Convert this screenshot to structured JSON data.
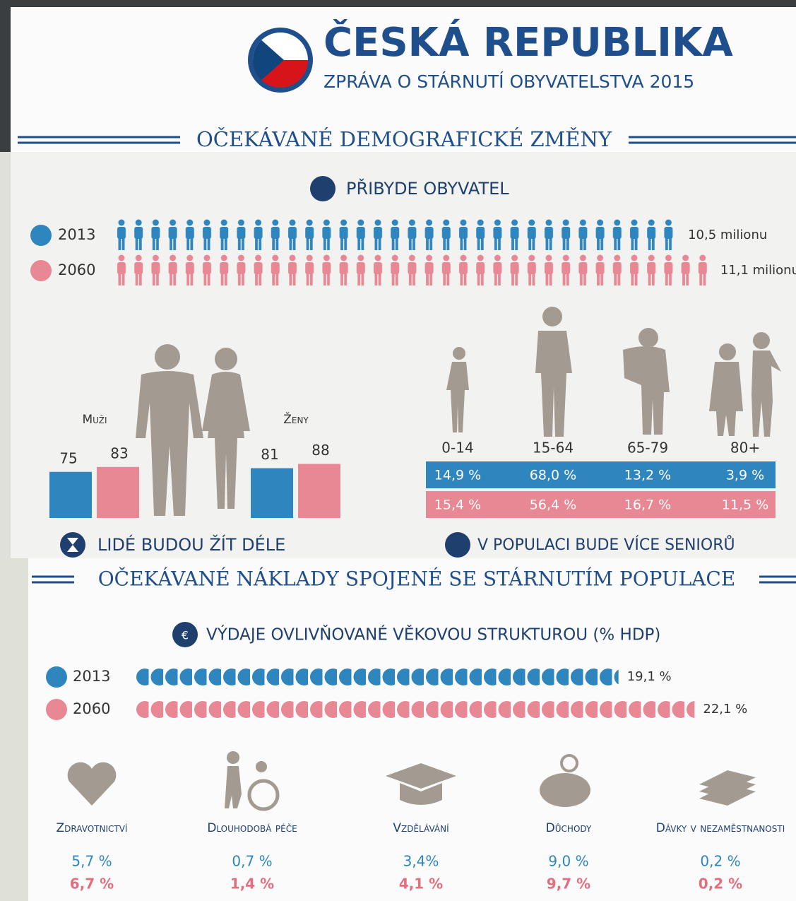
{
  "header": {
    "title": "ČESKÁ REPUBLIKA",
    "subtitle": "ZPRÁVA O STÁRNUTÍ OBYVATELSTVA 2015"
  },
  "demography": {
    "heading": "OČEKÁVANÉ DEMOGRAFICKÉ ZMĚNY",
    "population": {
      "title": "PŘIBYDE OBYVATEL",
      "rows": [
        {
          "year": "2013",
          "value": 10.5,
          "label": "10,5 milionu",
          "color": "#2f86bf"
        },
        {
          "year": "2060",
          "value": 11.1,
          "label": "11,1 milionu",
          "color": "#e98895"
        }
      ]
    },
    "life_expectancy": {
      "caption": "LIDÉ BUDOU ŽÍT DÉLE",
      "groups": [
        {
          "name": "Muži",
          "values": [
            75,
            83
          ]
        },
        {
          "name": "Ženy",
          "values": [
            81,
            88
          ]
        }
      ]
    },
    "age_structure": {
      "caption": "V POPULACI BUDE VÍCE SENIORŮ",
      "groups": [
        "0-14",
        "15-64",
        "65-79",
        "80+"
      ],
      "rows": [
        [
          "14,9 %",
          "68,0 %",
          "13,2 %",
          "3,9 %"
        ],
        [
          "15,4 %",
          "56,4 %",
          "16,7 %",
          "11,5 %"
        ]
      ]
    }
  },
  "costs": {
    "heading": "OČEKÁVANÉ NÁKLADY SPOJENÉ SE STÁRNUTÍM POPULACE",
    "spending": {
      "title": "VÝDAJE OVLIVŇOVANÉ VĚKOVOU STRUKTUROU (% HDP)",
      "rows": [
        {
          "year": "2013",
          "value": 19.1,
          "label": "19,1 %"
        },
        {
          "year": "2060",
          "value": 22.1,
          "label": "22,1 %"
        }
      ]
    },
    "categories": [
      {
        "name": "Zdravotnictví",
        "values": [
          "5,7 %",
          "6,7 %"
        ]
      },
      {
        "name": "Dlouhodobá péče",
        "values": [
          "0,7 %",
          "1,4 %"
        ]
      },
      {
        "name": "Vzdělávání",
        "values": [
          "3,4%",
          "4,1 %"
        ]
      },
      {
        "name": "Důchody",
        "values": [
          "9,0 %",
          "9,7 %"
        ]
      },
      {
        "name": "Dávky v nezaměstnanosti",
        "values": [
          "0,2 %",
          "0,2 %"
        ]
      }
    ]
  }
}
